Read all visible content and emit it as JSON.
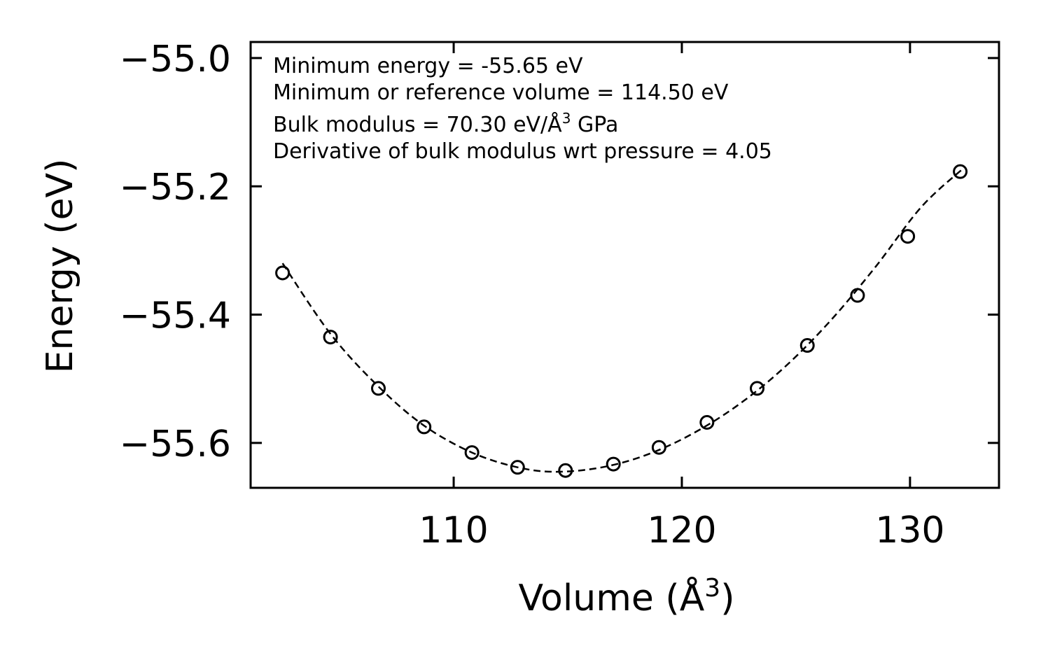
{
  "chart_data": {
    "type": "scatter",
    "xlabel": "Volume (Å",
    "xlabel_sup": "3",
    "xlabel_close": ")",
    "ylabel": "Energy (eV)",
    "xlim": [
      101.1,
      133.9
    ],
    "ylim": [
      -55.67,
      -54.975
    ],
    "xticks": [
      110,
      120,
      130
    ],
    "yticks": [
      -55.6,
      -55.4,
      -55.2,
      -55.0
    ],
    "xtick_labels": [
      "110",
      "120",
      "130"
    ],
    "ytick_labels": [
      "−55.6",
      "−55.4",
      "−55.2",
      "−55.0"
    ],
    "series": [
      {
        "name": "data",
        "marker": "circle-open",
        "x": [
          102.5,
          104.6,
          106.7,
          108.7,
          110.8,
          112.8,
          114.9,
          117.0,
          119.0,
          121.1,
          123.3,
          125.5,
          127.7,
          129.9,
          132.2
        ],
        "y": [
          -55.335,
          -55.435,
          -55.515,
          -55.575,
          -55.615,
          -55.638,
          -55.643,
          -55.633,
          -55.607,
          -55.568,
          -55.515,
          -55.448,
          -55.37,
          -55.278,
          -55.177
        ]
      },
      {
        "name": "fit",
        "style": "dashed",
        "x": [
          102.5,
          104.6,
          106.7,
          108.7,
          110.8,
          112.8,
          114.5,
          116.5,
          118.5,
          120.5,
          122.5,
          124.5,
          126.5,
          128.5,
          130.5,
          132.4
        ],
        "y": [
          -55.32,
          -55.43,
          -55.512,
          -55.573,
          -55.615,
          -55.638,
          -55.645,
          -55.638,
          -55.618,
          -55.585,
          -55.54,
          -55.482,
          -55.41,
          -55.325,
          -55.232,
          -55.17
        ]
      }
    ],
    "annotations": [
      "Minimum energy = -55.65 eV",
      "Minimum or reference volume = 114.50 eV",
      "Bulk modulus = 70.30 eV/Å",
      "Derivative of bulk modulus wrt pressure = 4.05"
    ],
    "annotation_bulk_sup": "3",
    "annotation_bulk_tail": " GPa"
  }
}
